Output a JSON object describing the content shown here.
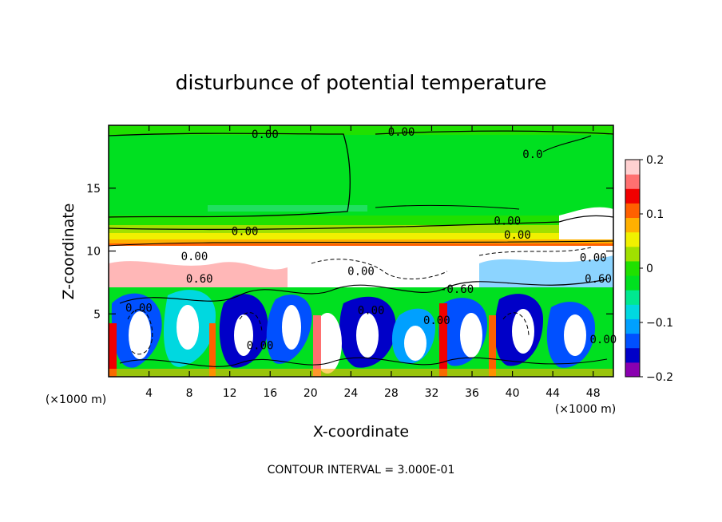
{
  "chart_data": {
    "type": "heatmap",
    "title": "disturbunce of potential temperature",
    "xlabel": "X-coordinate",
    "ylabel": "Z-coordinate",
    "x_unit_label": "(×1000 m)",
    "y_unit_label": "(×1000 m)",
    "x_ticks": [
      4,
      8,
      12,
      16,
      20,
      24,
      28,
      32,
      36,
      40,
      44,
      48
    ],
    "y_ticks": [
      5,
      10,
      15
    ],
    "xlim": [
      0,
      50
    ],
    "ylim": [
      0,
      20
    ],
    "colorbar": {
      "ticks": [
        0.2,
        0.1,
        0,
        -0.1,
        -0.2
      ],
      "tick_labels": [
        "0.2",
        "0.1",
        "0",
        "−0.1",
        "−0.2"
      ],
      "range": [
        -0.2,
        0.2
      ],
      "colors": [
        "#8a00b0",
        "#0000c8",
        "#0050ff",
        "#00a0ff",
        "#00d8e0",
        "#00e890",
        "#00e020",
        "#20e000",
        "#a0e000",
        "#f0f000",
        "#ffb000",
        "#ff6000",
        "#f00000",
        "#ff7070",
        "#ffd0d0"
      ]
    },
    "contour_labels": [
      {
        "text": "0.00",
        "x": 15.5,
        "z": 19.3
      },
      {
        "text": "0.00",
        "x": 29.0,
        "z": 19.5
      },
      {
        "text": "0.00",
        "x": 13.5,
        "z": 11.6
      },
      {
        "text": "0.00",
        "x": 39.5,
        "z": 12.4
      },
      {
        "text": "0.00",
        "x": 40.5,
        "z": 11.3
      },
      {
        "text": "0.00",
        "x": 8.5,
        "z": 9.6
      },
      {
        "text": "0.60",
        "x": 9.0,
        "z": 7.8
      },
      {
        "text": "0.00",
        "x": 25.0,
        "z": 8.4
      },
      {
        "text": "-0.60",
        "x": 34.5,
        "z": 7.0
      },
      {
        "text": "0.60",
        "x": 48.5,
        "z": 7.8
      },
      {
        "text": "0.00",
        "x": 48.0,
        "z": 9.5
      },
      {
        "text": "0.00",
        "x": 26.0,
        "z": 5.3
      },
      {
        "text": "0.00",
        "x": 15.0,
        "z": 2.5
      },
      {
        "text": "0.00",
        "x": 3.0,
        "z": 5.5
      },
      {
        "text": "0.00",
        "x": 49.0,
        "z": 3.0
      },
      {
        "text": "0.00",
        "x": 32.5,
        "z": 4.5
      },
      {
        "text": "0.0",
        "x": 42.0,
        "z": 17.7
      }
    ],
    "footer": "CONTOUR INTERVAL = 3.000E-01"
  }
}
